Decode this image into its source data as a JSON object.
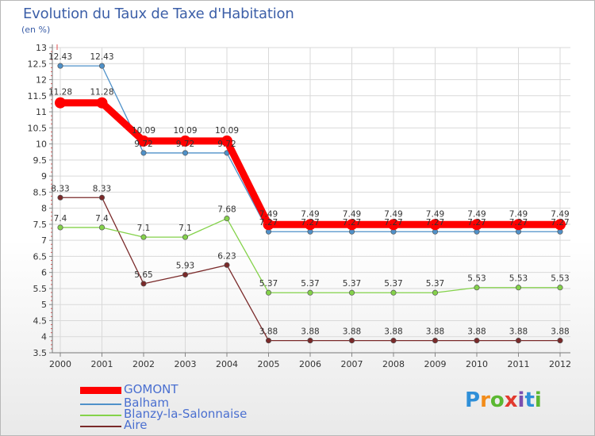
{
  "title": "Evolution du Taux de Taxe d'Habitation",
  "subtitle": "(en %)",
  "chart_data": {
    "type": "line",
    "x": [
      "2000",
      "2001",
      "2002",
      "2003",
      "2004",
      "2005",
      "2006",
      "2007",
      "2008",
      "2009",
      "2010",
      "2011",
      "2012"
    ],
    "ylim": [
      3.5,
      13
    ],
    "yticks": [
      "3.5",
      "4",
      "4.5",
      "5",
      "5.5",
      "6",
      "6.5",
      "7",
      "7.5",
      "8",
      "8.5",
      "9",
      "9.5",
      "10",
      "10.5",
      "11",
      "11.5",
      "12",
      "12.5",
      "13"
    ],
    "grid": true,
    "series": [
      {
        "name": "GOMONT",
        "color": "#ff0000",
        "values": [
          11.28,
          11.28,
          10.09,
          10.09,
          10.09,
          7.49,
          7.49,
          7.49,
          7.49,
          7.49,
          7.49,
          7.49,
          7.49
        ],
        "labels": [
          "11.28",
          "11.28",
          "10.09",
          "10.09",
          "10.09",
          "7.49",
          "7.49",
          "7.49",
          "7.49",
          "7.49",
          "7.49",
          "7.49",
          "7.49"
        ]
      },
      {
        "name": "Balham",
        "color": "#4f91c9",
        "values": [
          12.43,
          12.43,
          9.72,
          9.72,
          9.72,
          7.27,
          7.27,
          7.27,
          7.27,
          7.27,
          7.27,
          7.27,
          7.27
        ],
        "labels": [
          "12.43",
          "12.43",
          "9.72",
          "9.72",
          "9.72",
          "7.27",
          "7.27",
          "7.27",
          "7.27",
          "7.27",
          "7.27",
          "7.27",
          "7.27"
        ]
      },
      {
        "name": "Blanzy-la-Salonnaise",
        "color": "#84d24a",
        "values": [
          7.4,
          7.4,
          7.1,
          7.1,
          7.68,
          5.37,
          5.37,
          5.37,
          5.37,
          5.37,
          5.53,
          5.53,
          5.53
        ],
        "labels": [
          "7.4",
          "7.4",
          "7.1",
          "7.1",
          "7.68",
          "5.37",
          "5.37",
          "5.37",
          "5.37",
          "5.37",
          "5.53",
          "5.53",
          "5.53"
        ]
      },
      {
        "name": "Aire",
        "color": "#7a2a2a",
        "values": [
          8.33,
          8.33,
          5.65,
          5.93,
          6.23,
          3.88,
          3.88,
          3.88,
          3.88,
          3.88,
          3.88,
          3.88,
          3.88
        ],
        "labels": [
          "8.33",
          "8.33",
          "5.65",
          "5.93",
          "6.23",
          "3.88",
          "3.88",
          "3.88",
          "3.88",
          "3.88",
          "3.88",
          "3.88",
          "3.88"
        ]
      }
    ],
    "legend_placement": "bottom-left"
  },
  "logo": {
    "letters": [
      "P",
      "r",
      "o",
      "x",
      "i",
      "t",
      "i"
    ],
    "alt": "Proxiti"
  }
}
